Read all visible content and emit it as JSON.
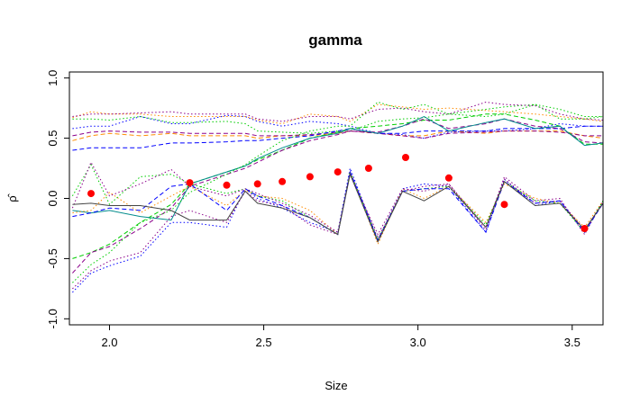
{
  "chart_data": {
    "type": "line",
    "title": "gamma",
    "xlabel": "Size",
    "ylabel": "ρ̂",
    "xlim": [
      1.87,
      3.6
    ],
    "ylim": [
      -1.05,
      1.05
    ],
    "xticks": [
      2.0,
      2.5,
      3.0,
      3.5
    ],
    "xtick_labels": [
      "2.0",
      "2.5",
      "3.0",
      "3.5"
    ],
    "yticks": [
      -1.0,
      -0.5,
      0.0,
      0.5,
      1.0
    ],
    "ytick_labels": [
      "-1.0",
      "-0.5",
      "0.0",
      "0.5",
      "1.0"
    ],
    "grid": false,
    "legend": "none",
    "x": [
      1.88,
      1.94,
      2.0,
      2.1,
      2.2,
      2.26,
      2.38,
      2.44,
      2.48,
      2.56,
      2.65,
      2.74,
      2.78,
      2.87,
      2.95,
      3.02,
      3.1,
      3.22,
      3.28,
      3.38,
      3.46,
      3.54,
      3.6
    ],
    "points": {
      "name": "",
      "color": "#ff0000",
      "x": [
        1.94,
        2.26,
        2.38,
        2.48,
        2.56,
        2.65,
        2.74,
        2.84,
        2.96,
        3.1,
        3.28,
        3.54
      ],
      "y": [
        0.04,
        0.13,
        0.11,
        0.12,
        0.14,
        0.18,
        0.22,
        0.25,
        0.34,
        0.17,
        -0.05,
        -0.25
      ]
    },
    "series": [
      {
        "name": "",
        "color": "#0000ff",
        "dash": "dotted",
        "values": [
          0.58,
          0.6,
          0.6,
          0.68,
          0.62,
          0.62,
          0.69,
          0.68,
          0.64,
          0.6,
          0.64,
          0.62,
          0.6,
          0.54,
          0.53,
          0.5,
          0.55,
          0.56,
          0.56,
          0.58,
          0.62,
          0.6,
          0.6
        ]
      },
      {
        "name": "",
        "color": "#ff8c00",
        "dash": "dotted",
        "values": [
          0.67,
          0.72,
          0.7,
          0.7,
          0.68,
          0.68,
          0.68,
          0.68,
          0.65,
          0.62,
          0.7,
          0.68,
          0.64,
          0.78,
          0.76,
          0.74,
          0.75,
          0.73,
          0.72,
          0.7,
          0.68,
          0.66,
          0.64
        ]
      },
      {
        "name": "",
        "color": "#00cd00",
        "dash": "dotted",
        "values": [
          0.66,
          0.66,
          0.65,
          0.68,
          0.63,
          0.63,
          0.64,
          0.62,
          0.56,
          0.55,
          0.54,
          0.56,
          0.56,
          0.64,
          0.66,
          0.67,
          0.7,
          0.74,
          0.76,
          0.78,
          0.74,
          0.68,
          0.68
        ]
      },
      {
        "name": "",
        "color": "#8b008b",
        "dash": "dotted",
        "values": [
          0.68,
          0.7,
          0.7,
          0.71,
          0.72,
          0.7,
          0.7,
          0.7,
          0.66,
          0.64,
          0.68,
          0.68,
          0.66,
          0.74,
          0.75,
          0.72,
          0.7,
          0.8,
          0.78,
          0.77,
          0.7,
          0.66,
          0.65
        ]
      },
      {
        "name": "",
        "color": "#ff8c00",
        "dash": "dashed",
        "values": [
          0.48,
          0.52,
          0.54,
          0.52,
          0.54,
          0.52,
          0.52,
          0.52,
          0.5,
          0.52,
          0.52,
          0.54,
          0.56,
          0.54,
          0.52,
          0.52,
          0.56,
          0.54,
          0.56,
          0.56,
          0.56,
          0.52,
          0.5
        ]
      },
      {
        "name": "",
        "color": "#8b008b",
        "dash": "dashed",
        "values": [
          0.52,
          0.55,
          0.56,
          0.55,
          0.55,
          0.54,
          0.54,
          0.54,
          0.52,
          0.52,
          0.53,
          0.55,
          0.56,
          0.54,
          0.52,
          0.5,
          0.54,
          0.55,
          0.56,
          0.56,
          0.55,
          0.52,
          0.52
        ]
      },
      {
        "name": "",
        "color": "#0000ff",
        "dash": "dashed",
        "values": [
          0.4,
          0.42,
          0.42,
          0.42,
          0.46,
          0.46,
          0.47,
          0.48,
          0.48,
          0.5,
          0.52,
          0.56,
          0.58,
          0.54,
          0.54,
          0.56,
          0.56,
          0.56,
          0.58,
          0.58,
          0.58,
          0.6,
          0.6
        ]
      },
      {
        "name": "",
        "color": "#00cd00",
        "dash": "dashed",
        "values": [
          -0.5,
          -0.45,
          -0.38,
          -0.2,
          -0.05,
          0.12,
          0.22,
          0.27,
          0.32,
          0.4,
          0.5,
          0.55,
          0.58,
          0.6,
          0.62,
          0.65,
          0.65,
          0.7,
          0.7,
          0.65,
          0.6,
          0.45,
          0.45
        ]
      },
      {
        "name": "",
        "color": "#8b008b",
        "dash": "dashed",
        "values": [
          -0.62,
          -0.45,
          -0.4,
          -0.25,
          -0.08,
          0.1,
          0.2,
          0.25,
          0.3,
          0.4,
          0.48,
          0.53,
          0.56,
          0.55,
          0.6,
          0.66,
          0.58,
          0.62,
          0.66,
          0.6,
          0.58,
          0.47,
          0.46
        ]
      },
      {
        "name": "",
        "color": "#008b8b",
        "dash": "solid",
        "values": [
          -0.1,
          -0.12,
          -0.1,
          -0.15,
          -0.18,
          0.12,
          0.22,
          0.27,
          0.33,
          0.42,
          0.5,
          0.54,
          0.58,
          0.54,
          0.6,
          0.68,
          0.56,
          0.63,
          0.66,
          0.58,
          0.6,
          0.44,
          0.46
        ]
      },
      {
        "name": "",
        "color": "#00cd00",
        "dash": "dotted",
        "values": [
          -0.7,
          -0.55,
          -0.45,
          -0.2,
          -0.1,
          0.05,
          0.2,
          0.28,
          0.35,
          0.48,
          0.56,
          0.6,
          0.6,
          0.8,
          0.74,
          0.78,
          0.7,
          0.68,
          0.7,
          0.78,
          0.66,
          0.66,
          0.68
        ]
      },
      {
        "name": "",
        "color": "#0000ff",
        "dash": "dotted",
        "values": [
          -0.78,
          -0.62,
          -0.56,
          -0.48,
          -0.2,
          -0.2,
          -0.24,
          0.08,
          0.0,
          -0.08,
          -0.2,
          -0.28,
          0.25,
          -0.35,
          0.08,
          0.12,
          0.1,
          -0.28,
          0.16,
          -0.06,
          -0.02,
          -0.28,
          -0.02
        ]
      },
      {
        "name": "",
        "color": "#8b008b",
        "dash": "dotted",
        "values": [
          -0.75,
          -0.6,
          -0.52,
          -0.45,
          -0.15,
          -0.1,
          -0.2,
          0.06,
          -0.02,
          -0.06,
          -0.22,
          -0.3,
          0.22,
          -0.33,
          0.06,
          0.1,
          0.12,
          -0.26,
          0.18,
          -0.02,
          0.0,
          -0.3,
          -0.02
        ]
      },
      {
        "name": "",
        "color": "#ff8c00",
        "dash": "dotted",
        "values": [
          -0.12,
          -0.1,
          0.05,
          -0.12,
          0.02,
          0.1,
          -0.06,
          0.07,
          0.02,
          0.0,
          -0.1,
          -0.3,
          0.22,
          -0.38,
          0.08,
          0.0,
          0.1,
          -0.2,
          0.12,
          0.0,
          -0.04,
          -0.24,
          -0.02
        ]
      },
      {
        "name": "",
        "color": "#00cd00",
        "dash": "dotted",
        "values": [
          0.02,
          0.28,
          -0.05,
          0.18,
          0.2,
          0.12,
          0.04,
          0.08,
          0.02,
          -0.02,
          -0.16,
          -0.3,
          0.22,
          -0.34,
          0.06,
          0.08,
          0.1,
          -0.22,
          0.14,
          -0.02,
          -0.04,
          -0.28,
          -0.02
        ]
      },
      {
        "name": "",
        "color": "#8b008b",
        "dash": "dotted",
        "values": [
          -0.08,
          0.3,
          0.02,
          0.12,
          0.24,
          0.1,
          0.02,
          0.08,
          0.04,
          -0.04,
          -0.14,
          -0.28,
          0.2,
          -0.3,
          0.08,
          0.06,
          0.12,
          -0.24,
          0.16,
          -0.04,
          -0.02,
          -0.26,
          -0.04
        ]
      },
      {
        "name": "",
        "color": "#0000ff",
        "dash": "dashed",
        "values": [
          -0.15,
          -0.12,
          -0.08,
          -0.1,
          0.1,
          0.12,
          -0.1,
          0.08,
          0.02,
          -0.06,
          -0.16,
          -0.3,
          0.22,
          -0.35,
          0.06,
          0.08,
          0.08,
          -0.28,
          0.14,
          -0.04,
          -0.02,
          -0.28,
          -0.04
        ]
      },
      {
        "name": "",
        "color": "#444444",
        "dash": "solid",
        "values": [
          -0.05,
          -0.04,
          -0.06,
          -0.06,
          -0.1,
          -0.18,
          -0.18,
          0.06,
          -0.04,
          -0.08,
          -0.16,
          -0.3,
          0.2,
          -0.36,
          0.06,
          -0.02,
          0.1,
          -0.24,
          0.14,
          -0.06,
          -0.04,
          -0.26,
          -0.04
        ]
      }
    ]
  }
}
